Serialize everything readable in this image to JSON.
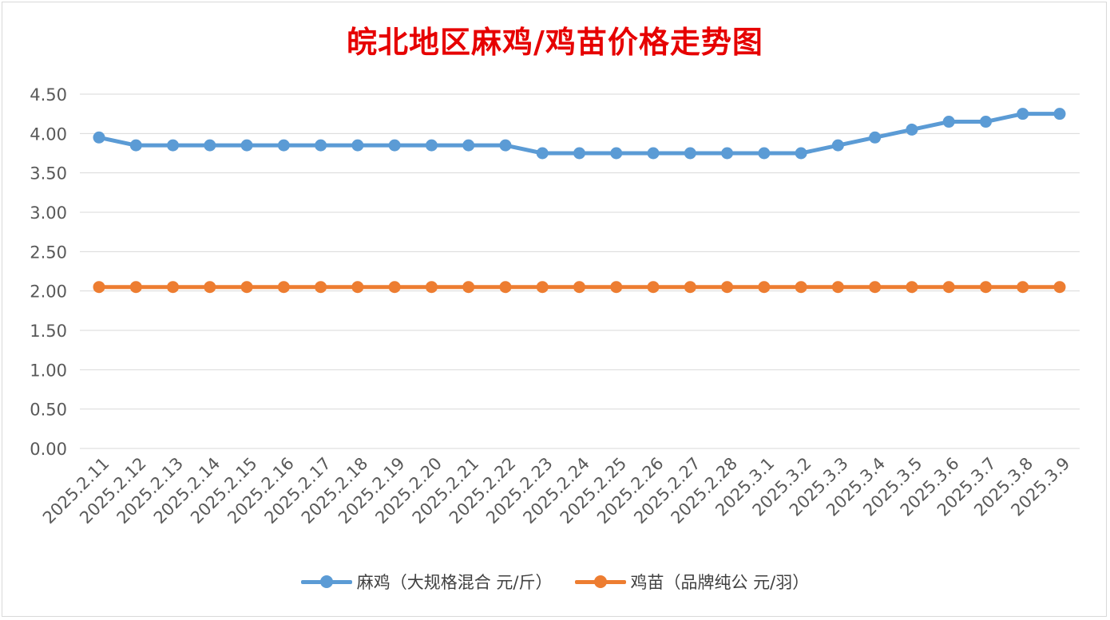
{
  "chart_data": {
    "type": "line",
    "title": "皖北地区麻鸡/鸡苗价格走势图",
    "categories": [
      "2025.2.11",
      "2025.2.12",
      "2025.2.13",
      "2025.2.14",
      "2025.2.15",
      "2025.2.16",
      "2025.2.17",
      "2025.2.18",
      "2025.2.19",
      "2025.2.20",
      "2025.2.21",
      "2025.2.22",
      "2025.2.23",
      "2025.2.24",
      "2025.2.25",
      "2025.2.26",
      "2025.2.27",
      "2025.2.28",
      "2025.3.1",
      "2025.3.2",
      "2025.3.3",
      "2025.3.4",
      "2025.3.5",
      "2025.3.6",
      "2025.3.7",
      "2025.3.8",
      "2025.3.9"
    ],
    "series": [
      {
        "name": "麻鸡（大规格混合 元/斤）",
        "color": "#5b9bd5",
        "values": [
          3.95,
          3.85,
          3.85,
          3.85,
          3.85,
          3.85,
          3.85,
          3.85,
          3.85,
          3.85,
          3.85,
          3.85,
          3.75,
          3.75,
          3.75,
          3.75,
          3.75,
          3.75,
          3.75,
          3.75,
          3.85,
          3.95,
          4.05,
          4.15,
          4.15,
          4.25,
          4.25
        ]
      },
      {
        "name": "鸡苗（品牌纯公 元/羽）",
        "color": "#ed7d31",
        "values": [
          2.05,
          2.05,
          2.05,
          2.05,
          2.05,
          2.05,
          2.05,
          2.05,
          2.05,
          2.05,
          2.05,
          2.05,
          2.05,
          2.05,
          2.05,
          2.05,
          2.05,
          2.05,
          2.05,
          2.05,
          2.05,
          2.05,
          2.05,
          2.05,
          2.05,
          2.05,
          2.05
        ]
      }
    ],
    "yticks": [
      "0.00",
      "0.50",
      "1.00",
      "1.50",
      "2.00",
      "2.50",
      "3.00",
      "3.50",
      "4.00",
      "4.50"
    ],
    "ylim": [
      0,
      4.5
    ],
    "grid": true,
    "legend_position": "bottom"
  }
}
